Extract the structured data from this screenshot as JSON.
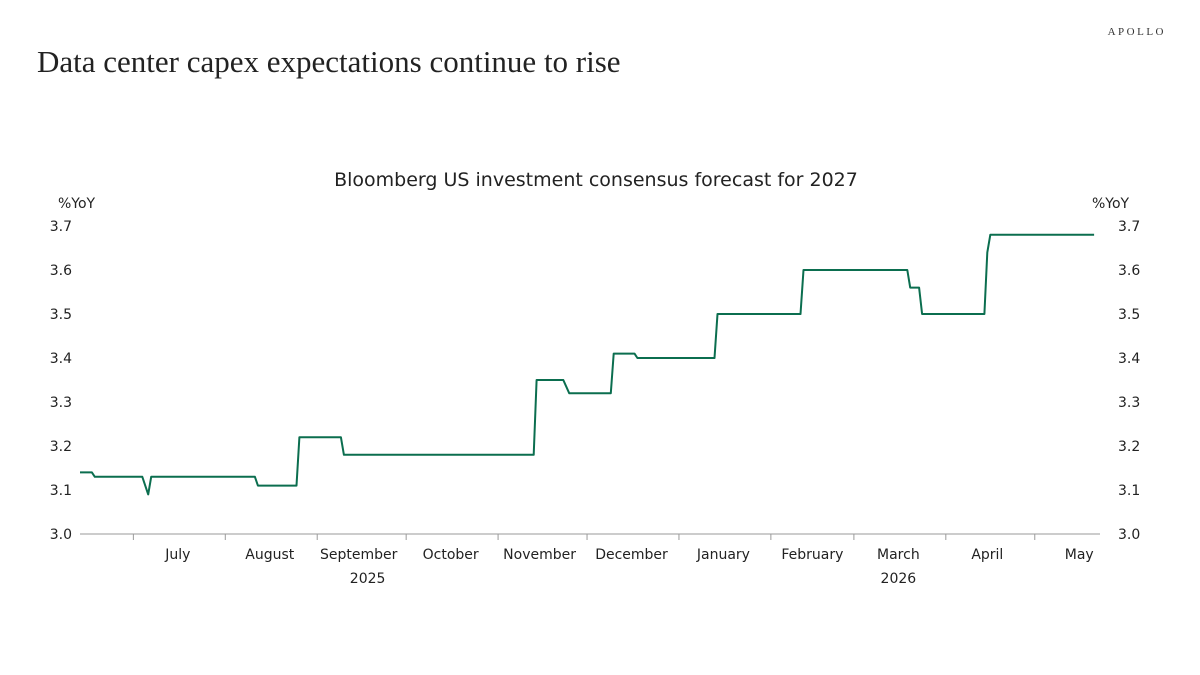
{
  "header": {
    "brand": "APOLLO",
    "headline": "Data center capex expectations continue to rise"
  },
  "chart_data": {
    "type": "line",
    "title": "Bloomberg US investment consensus forecast for 2027",
    "ylabel_left": "%YoY",
    "ylabel_right": "%YoY",
    "ylim": [
      3.0,
      3.7
    ],
    "yticks": [
      "3.0",
      "3.1",
      "3.2",
      "3.3",
      "3.4",
      "3.5",
      "3.6",
      "3.7"
    ],
    "xlim": [
      "2025-06-13",
      "2026-05-23"
    ],
    "month_labels": [
      {
        "label": "July",
        "date": "2025-07-16"
      },
      {
        "label": "August",
        "date": "2025-08-16"
      },
      {
        "label": "September",
        "date": "2025-09-15"
      },
      {
        "label": "October",
        "date": "2025-10-16"
      },
      {
        "label": "November",
        "date": "2025-11-15"
      },
      {
        "label": "December",
        "date": "2025-12-16"
      },
      {
        "label": "January",
        "date": "2026-01-16"
      },
      {
        "label": "February",
        "date": "2026-02-15"
      },
      {
        "label": "March",
        "date": "2026-03-16"
      },
      {
        "label": "April",
        "date": "2026-04-15"
      },
      {
        "label": "May",
        "date": "2026-05-16"
      }
    ],
    "month_boundaries": [
      "2025-07-01",
      "2025-08-01",
      "2025-09-01",
      "2025-10-01",
      "2025-11-01",
      "2025-12-01",
      "2026-01-01",
      "2026-02-01",
      "2026-03-01",
      "2026-04-01",
      "2026-05-01"
    ],
    "year_labels": [
      {
        "label": "2025",
        "date": "2025-09-18"
      },
      {
        "label": "2026",
        "date": "2026-03-16"
      }
    ],
    "series": [
      {
        "color": "#0b6e4f",
        "x": [
          "2025-06-13",
          "2025-06-17",
          "2025-06-18",
          "2025-07-04",
          "2025-07-06",
          "2025-07-07",
          "2025-08-11",
          "2025-08-12",
          "2025-08-25",
          "2025-08-26",
          "2025-09-09",
          "2025-09-10",
          "2025-09-11",
          "2025-11-13",
          "2025-11-14",
          "2025-11-23",
          "2025-11-25",
          "2025-12-09",
          "2025-12-10",
          "2025-12-17",
          "2025-12-18",
          "2026-01-13",
          "2026-01-14",
          "2026-02-11",
          "2026-02-12",
          "2026-03-19",
          "2026-03-20",
          "2026-03-23",
          "2026-03-24",
          "2026-04-14",
          "2026-04-15",
          "2026-04-16",
          "2026-05-21"
        ],
        "y": [
          3.14,
          3.14,
          3.13,
          3.13,
          3.09,
          3.13,
          3.13,
          3.11,
          3.11,
          3.22,
          3.22,
          3.18,
          3.18,
          3.18,
          3.35,
          3.35,
          3.32,
          3.32,
          3.41,
          3.41,
          3.4,
          3.4,
          3.5,
          3.5,
          3.6,
          3.6,
          3.56,
          3.56,
          3.5,
          3.5,
          3.64,
          3.68,
          3.68
        ]
      }
    ]
  }
}
